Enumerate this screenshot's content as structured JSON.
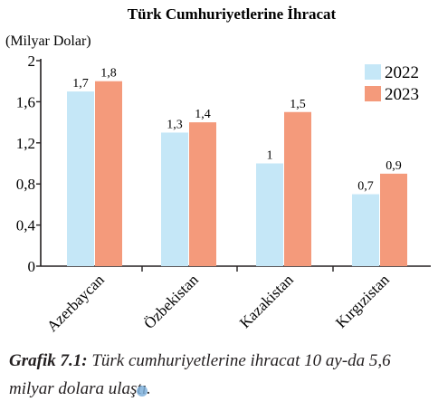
{
  "chart_data": {
    "type": "bar",
    "title": "Türk Cumhuriyetlerine İhracat",
    "ylabel": "(Milyar Dolar)",
    "xlabel": "",
    "categories": [
      "Azerbaycan",
      "Özbekistan",
      "Kazakistan",
      "Kırgızistan"
    ],
    "series": [
      {
        "name": "2022",
        "values": [
          1.7,
          1.3,
          1.0,
          0.7
        ],
        "labels": [
          "1,7",
          "1,3",
          "1",
          "0,7"
        ],
        "color": "#c5e7f7"
      },
      {
        "name": "2023",
        "values": [
          1.8,
          1.4,
          1.5,
          0.9
        ],
        "labels": [
          "1,8",
          "1,4",
          "1,5",
          "0,9"
        ],
        "color": "#f49a7b"
      }
    ],
    "ylim": [
      0,
      2
    ],
    "yticks": [
      0,
      0.4,
      0.8,
      1.2,
      1.6,
      2
    ],
    "ytick_labels": [
      "0",
      "0,4",
      "0,8",
      "1,2",
      "1,6",
      "2"
    ],
    "legend_position": "top-right",
    "grid": false
  },
  "caption": {
    "label": "Grafik 7.1:",
    "text": " Türk cumhuriyetlerine ihracat 10 ay-da 5,6 milyar dolara ulaştı."
  }
}
